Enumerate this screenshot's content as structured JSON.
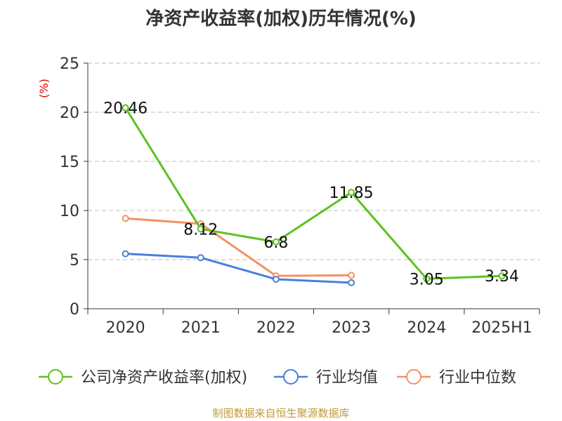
{
  "colors": {
    "series_1": "#5cc21f",
    "series_2": "#4a7fdb",
    "series_3": "#f49262",
    "axis": "#333333",
    "grid": "#bbbbbb",
    "ylabel": "#dd0000",
    "title": "#333333",
    "source": "#c09a3a"
  },
  "chart_data": {
    "type": "line",
    "title": "净资产收益率(加权)历年情况(%)",
    "ylabel": "(%)",
    "xlabel": "",
    "categories": [
      "2020",
      "2021",
      "2022",
      "2023",
      "2024",
      "2025H1"
    ],
    "ylim": [
      0,
      25
    ],
    "yticks": [
      0,
      5,
      10,
      15,
      20,
      25
    ],
    "grid": true,
    "legend_position": "bottom",
    "series": [
      {
        "name": "公司净资产收益率(加权)",
        "values": [
          20.46,
          8.12,
          6.8,
          11.85,
          3.05,
          3.34
        ],
        "labels": [
          "20.46",
          "8.12",
          "6.8",
          "11.85",
          "3.05",
          "3.34"
        ],
        "color": "#5cc21f"
      },
      {
        "name": "行业均值",
        "values": [
          5.6,
          5.2,
          3.0,
          2.65,
          null,
          null
        ],
        "color": "#4a7fdb"
      },
      {
        "name": "行业中位数",
        "values": [
          9.2,
          8.65,
          3.35,
          3.4,
          null,
          null
        ],
        "color": "#f49262"
      }
    ]
  },
  "footer": {
    "source": "制图数据来自恒生聚源数据库"
  }
}
